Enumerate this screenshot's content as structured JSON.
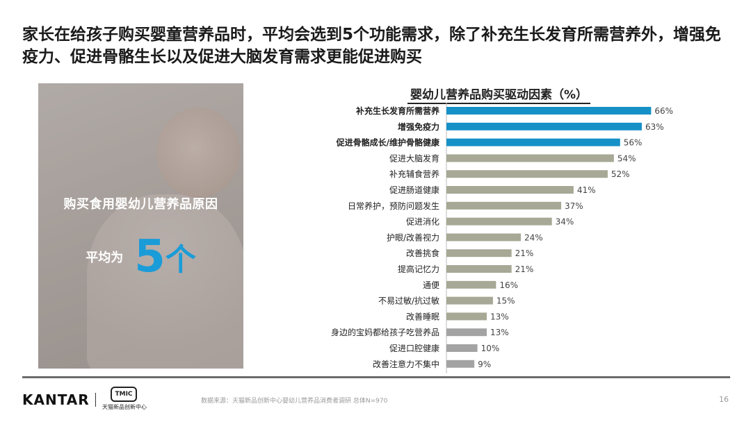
{
  "headline": "家长在给孩子购买婴童营养品时，平均会选到5个功能需求，除了补充生长发育所需营养外，增强免疫力、促进骨骼生长以及促进大脑发育需求更能促进购买",
  "photo_panel": {
    "label": "购买食用婴幼儿营养品原因",
    "avg_prefix": "平均为",
    "avg_value": "5",
    "avg_unit": "个"
  },
  "chart_data": {
    "type": "bar",
    "orientation": "horizontal",
    "title": "婴幼儿营养品购买驱动因素（%）",
    "categories": [
      "补充生长发育所需营养",
      "增强免疫力",
      "促进骨骼成长/维护骨骼健康",
      "促进大脑发育",
      "补充辅食营养",
      "促进肠道健康",
      "日常养护，预防问题发生",
      "促进消化",
      "护眼/改善视力",
      "改善挑食",
      "提高记忆力",
      "通便",
      "不易过敏/抗过敏",
      "改善睡眠",
      "身边的宝妈都给孩子吃营养品",
      "促进口腔健康",
      "改善注意力不集中"
    ],
    "values": [
      66,
      63,
      56,
      54,
      52,
      41,
      37,
      34,
      24,
      21,
      21,
      16,
      15,
      13,
      13,
      10,
      9
    ],
    "value_labels": [
      "66%",
      "63%",
      "56%",
      "54%",
      "52%",
      "41%",
      "37%",
      "34%",
      "24%",
      "21%",
      "21%",
      "16%",
      "15%",
      "13%",
      "13%",
      "10%",
      "9%"
    ],
    "highlight_count": 3,
    "bold_labels": [
      true,
      true,
      true,
      false,
      false,
      false,
      false,
      false,
      false,
      false,
      false,
      false,
      false,
      false,
      false,
      false,
      false
    ],
    "bar_colors": [
      "#1591c7",
      "#1591c7",
      "#1591c7",
      "#a7a895",
      "#a7a895",
      "#a7a895",
      "#a7a895",
      "#a7a895",
      "#a7a895",
      "#a7a895",
      "#a7a895",
      "#a7a895",
      "#a7a895",
      "#a7a895",
      "#a3a3a3",
      "#a3a3a3",
      "#a3a3a3"
    ],
    "xlim": [
      0,
      100
    ]
  },
  "footer": {
    "brand": "KANTAR",
    "partner_logo_text": "TMIC",
    "partner_name": "天猫新品创新中心",
    "source": "数据来源：天猫新品创新中心婴幼儿营养品消费者调研  总体N=970",
    "page": "16"
  }
}
